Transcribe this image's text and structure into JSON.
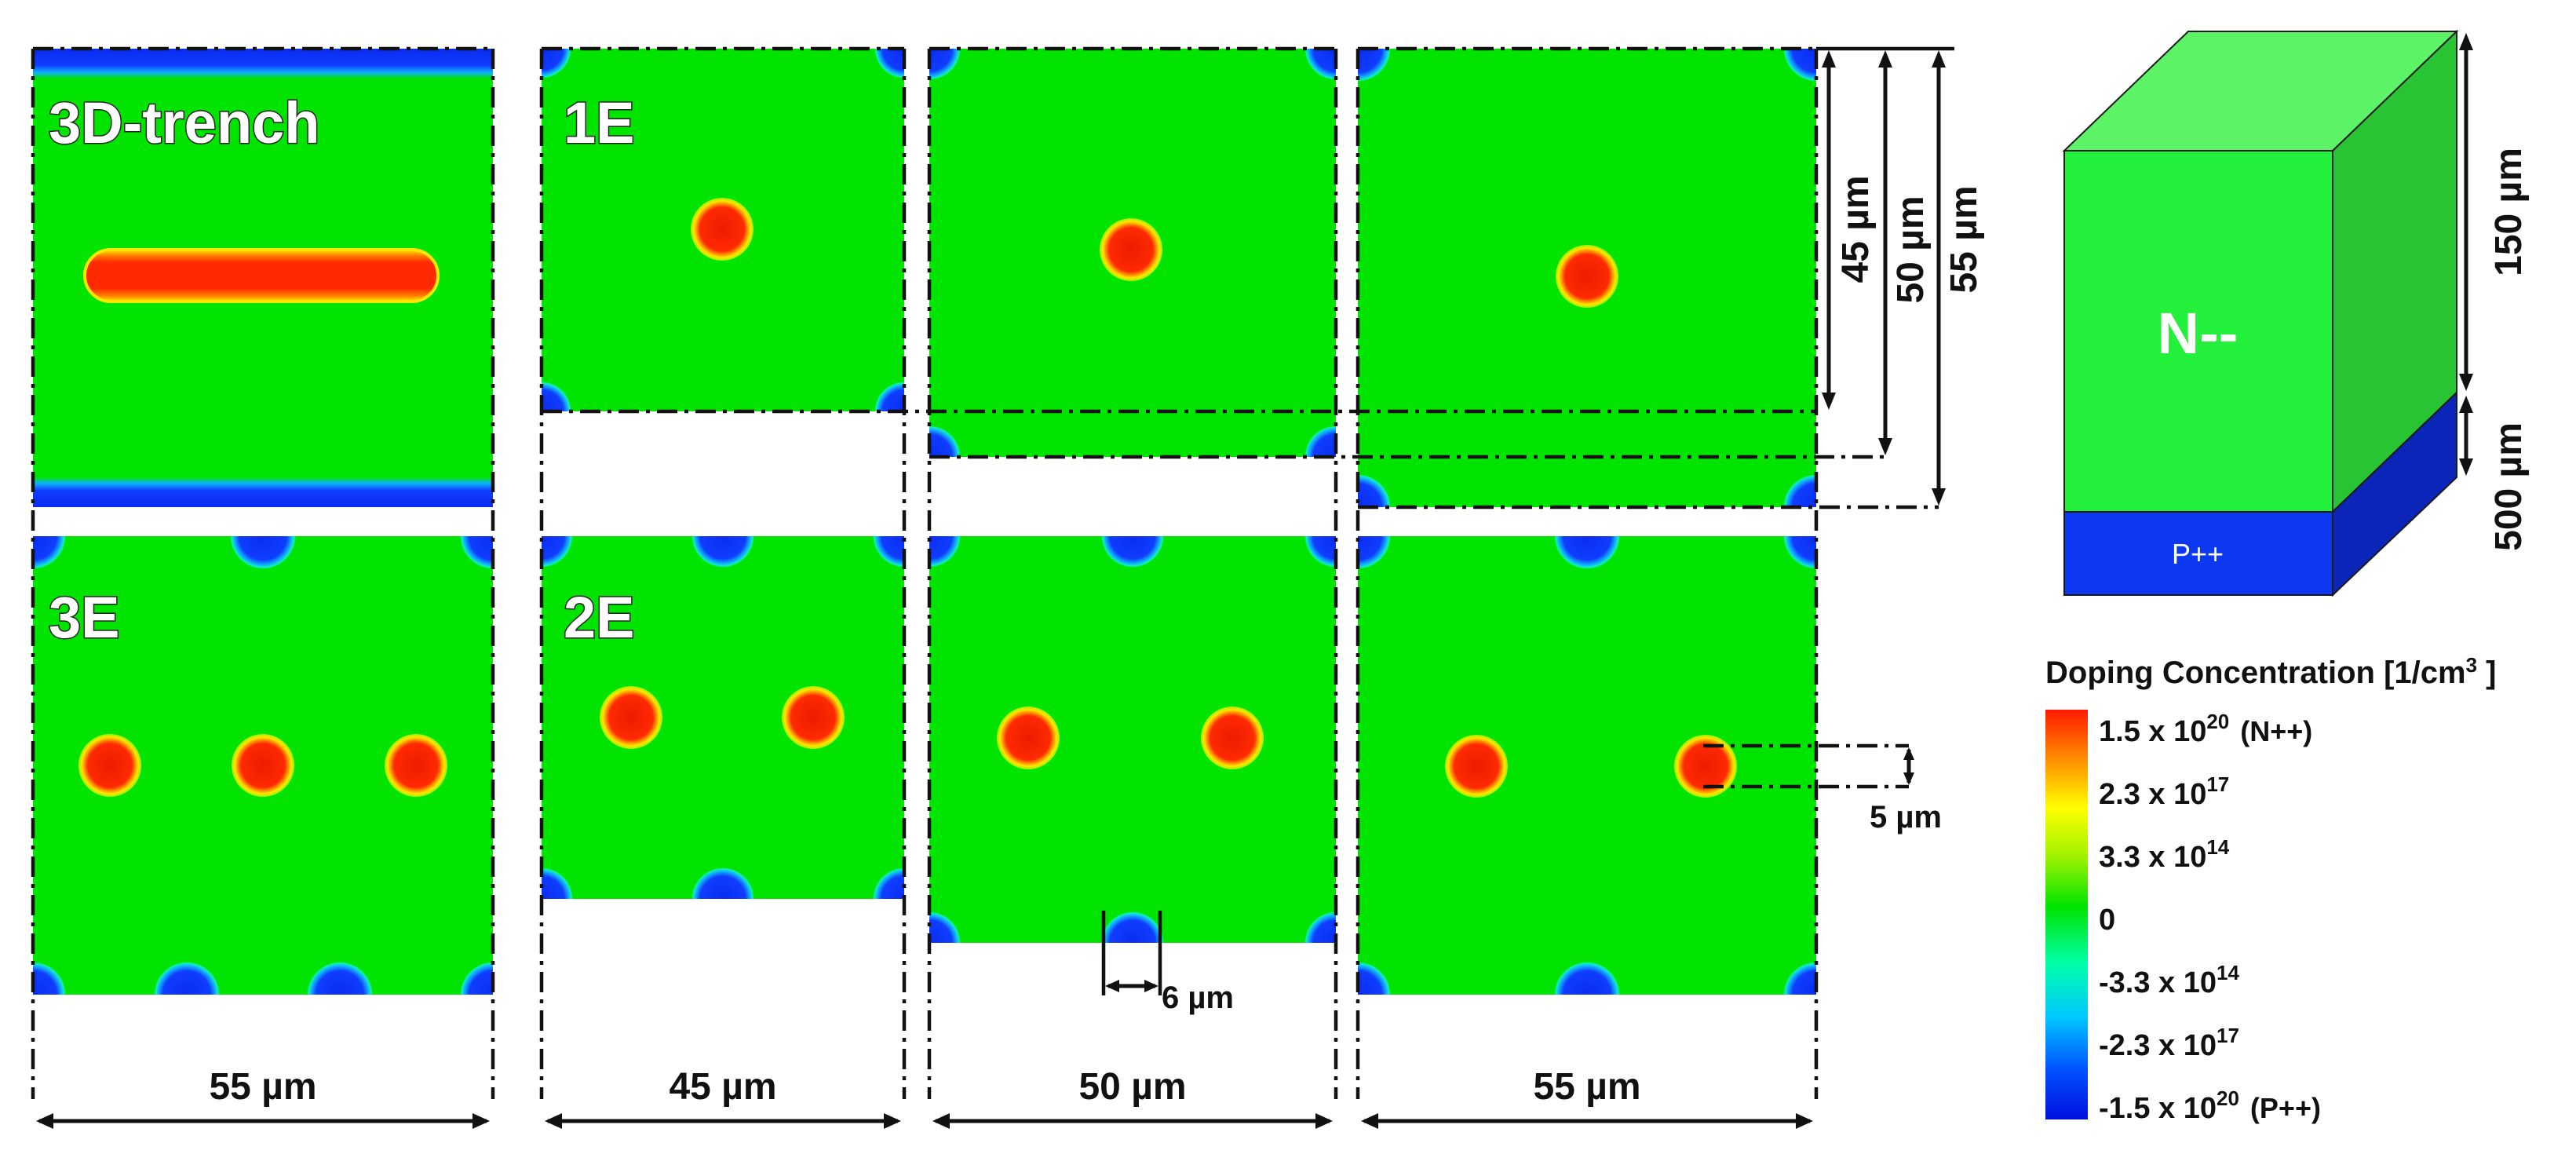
{
  "panels": {
    "trench": "3D-trench",
    "e1": "1E",
    "e2": "2E",
    "e3": "3E"
  },
  "dimensions": {
    "w55": "55 µm",
    "w45": "45 µm",
    "w50": "50 µm",
    "w55b": "55 µm",
    "h45": "45 µm",
    "h50": "50 µm",
    "h55": "55 µm",
    "electrode_width": "6 µm",
    "electrode_diameter": "5 µm"
  },
  "device": {
    "region_top": "N--",
    "region_bottom": "P++",
    "thickness_top": "150 µm",
    "thickness_bottom": "500 µm"
  },
  "legend": {
    "title": "Doping Concentration [1/cm",
    "title_sup": "3",
    "title_end": " ]",
    "ticks": [
      {
        "base": "1.5 x 10",
        "exp": "20",
        "suffix": "(N++)"
      },
      {
        "base": "2.3 x 10",
        "exp": "17",
        "suffix": ""
      },
      {
        "base": "3.3 x 10",
        "exp": "14",
        "suffix": ""
      },
      {
        "base": "0",
        "exp": "",
        "suffix": ""
      },
      {
        "base": "-3.3 x 10",
        "exp": "14",
        "suffix": ""
      },
      {
        "base": "-2.3 x 10",
        "exp": "17",
        "suffix": ""
      },
      {
        "base": "-1.5 x 10",
        "exp": "20",
        "suffix": "(P++)"
      }
    ],
    "colors": [
      "#ff1a00",
      "#ff8c00",
      "#ffff00",
      "#9ff200",
      "#00e400",
      "#00ffaa",
      "#00c8ff",
      "#0050ff",
      "#0010e0"
    ]
  },
  "colors": {
    "n_region": "#00e400",
    "p_region": "#0c3cff",
    "electrode": "#ee2200",
    "electrode_ring": "#ffd000"
  }
}
